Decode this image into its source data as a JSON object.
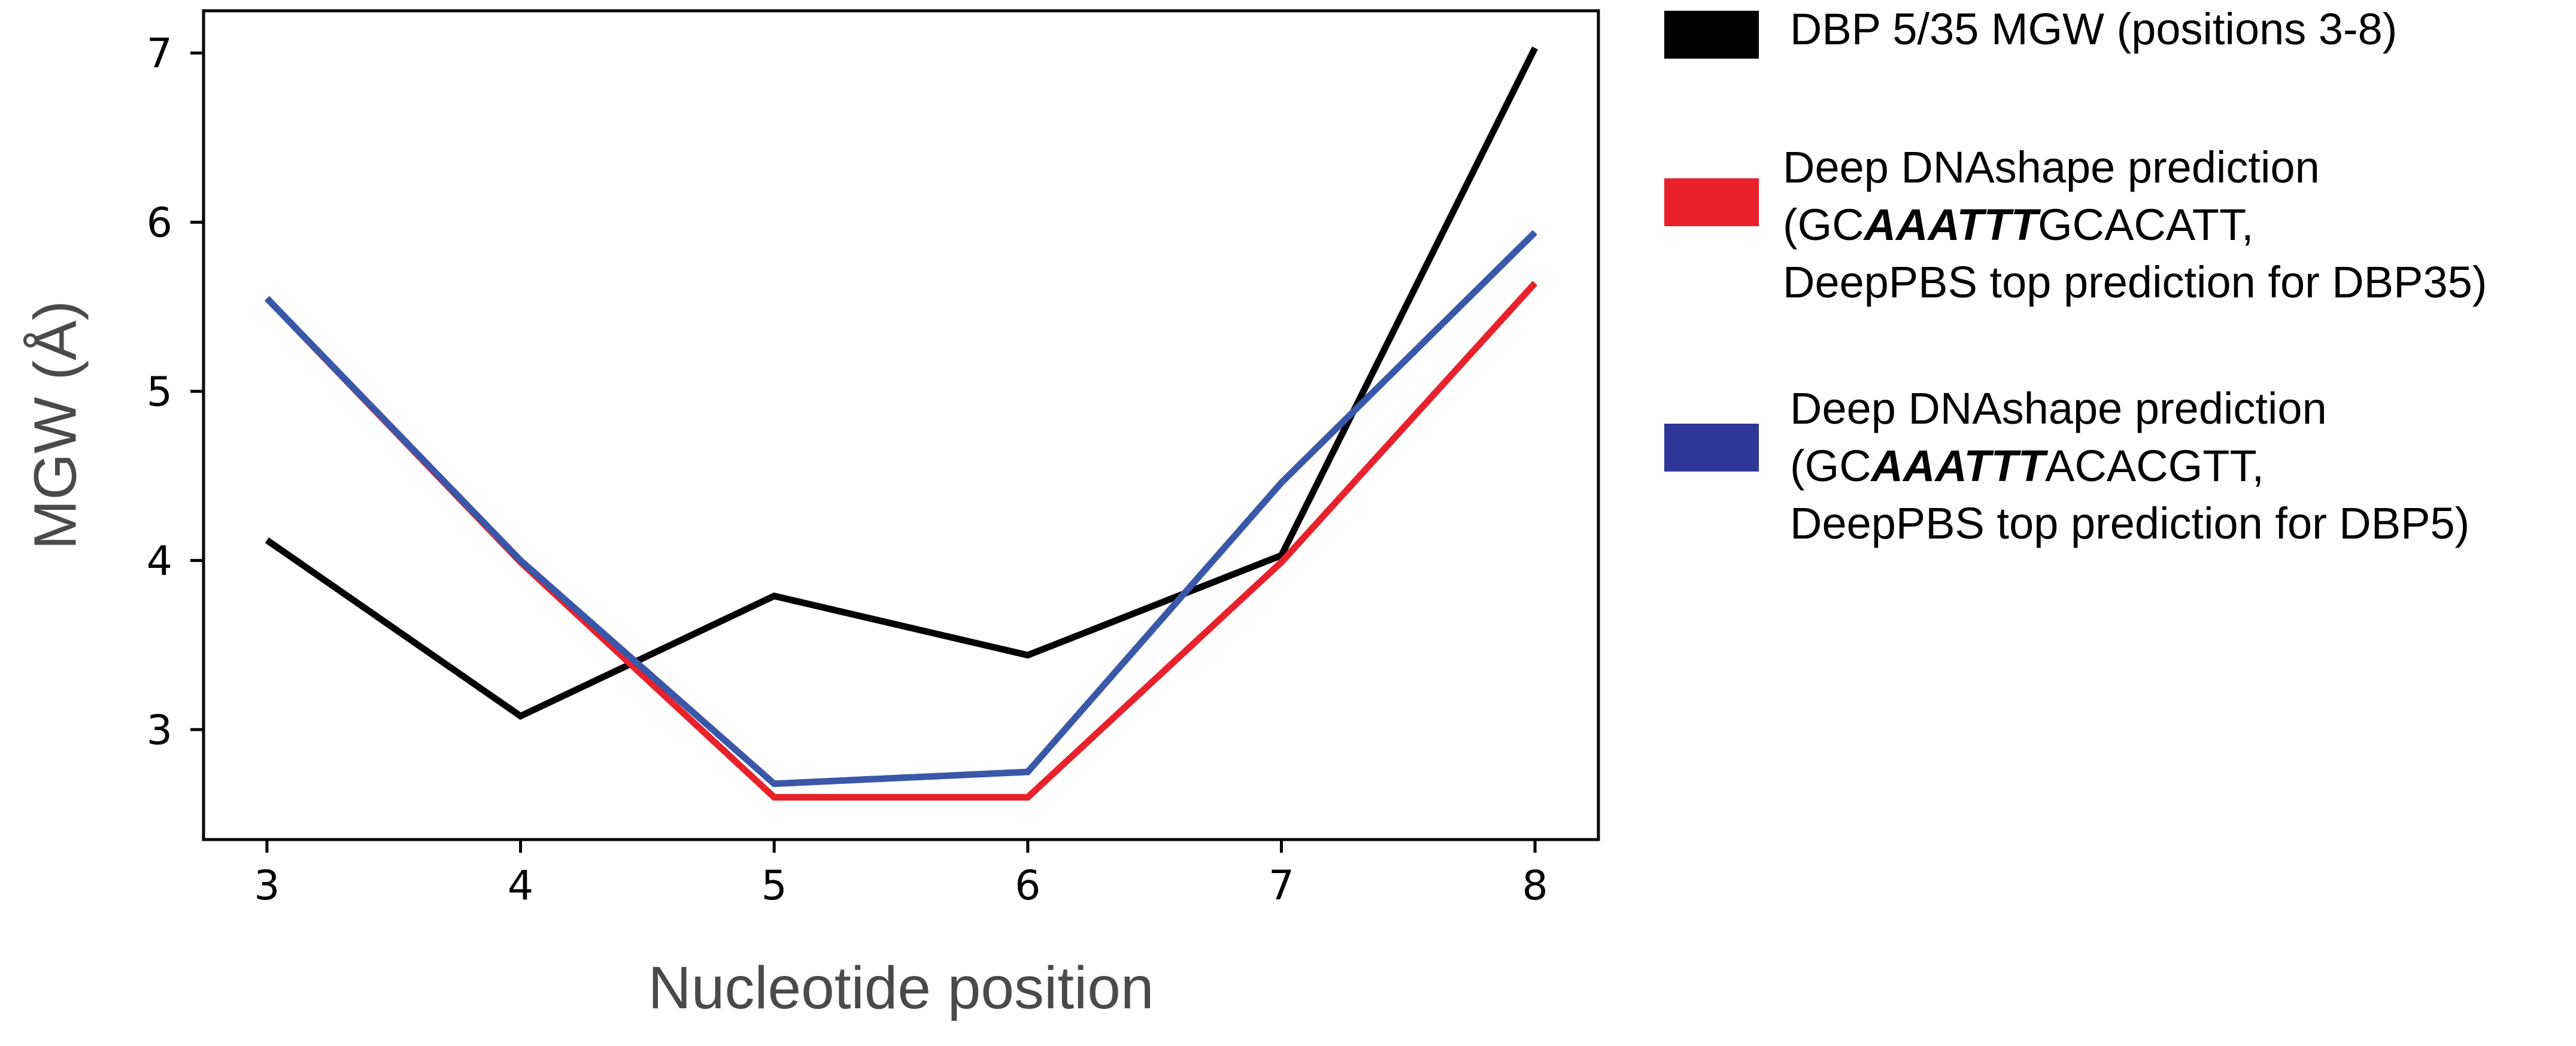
{
  "chart_data": {
    "type": "line",
    "title": "",
    "xlabel": "Nucleotide position",
    "ylabel": "MGW (Å)",
    "x": [
      3,
      4,
      5,
      6,
      7,
      8
    ],
    "xlim": [
      2.75,
      8.25
    ],
    "ylim": [
      2.35,
      7.25
    ],
    "xticks": [
      3,
      4,
      5,
      6,
      7,
      8
    ],
    "yticks": [
      3,
      4,
      5,
      6,
      7
    ],
    "grid": false,
    "legend_placement": "outside-right",
    "series": [
      {
        "name": "DBP 5/35 MGW (positions 3-8)",
        "color": "#000000",
        "values": [
          4.12,
          3.08,
          3.79,
          3.44,
          4.03,
          7.03
        ]
      },
      {
        "name": "Deep DNAshape prediction (GCAAATTTGCACATT, DeepPBS top prediction for DBP35)",
        "color": "#e8212a",
        "values": [
          5.55,
          3.99,
          2.6,
          2.6,
          3.99,
          5.64
        ]
      },
      {
        "name": "Deep DNAshape prediction (GCAAATTTACACGTT, DeepPBS top prediction for DBP5)",
        "color": "#3b57a8",
        "values": [
          5.55,
          4.0,
          2.68,
          2.75,
          4.46,
          5.94
        ]
      }
    ],
    "legend": [
      {
        "swatch_color": "#000000",
        "lines": [
          [
            "DBP 5/35 MGW (positions 3-8)"
          ]
        ]
      },
      {
        "swatch_color": "#e8212a",
        "lines": [
          [
            "Deep DNAshape prediction"
          ],
          [
            "(GC",
            "AAATTT",
            "GCACATT,"
          ],
          [
            "DeepPBS top prediction for DBP35)"
          ]
        ]
      },
      {
        "swatch_color": "#2e3796",
        "lines": [
          [
            "Deep DNAshape prediction"
          ],
          [
            "(GC",
            "AAATTT",
            "ACACGTT,"
          ],
          [
            "DeepPBS top prediction for DBP5)"
          ]
        ]
      }
    ]
  }
}
